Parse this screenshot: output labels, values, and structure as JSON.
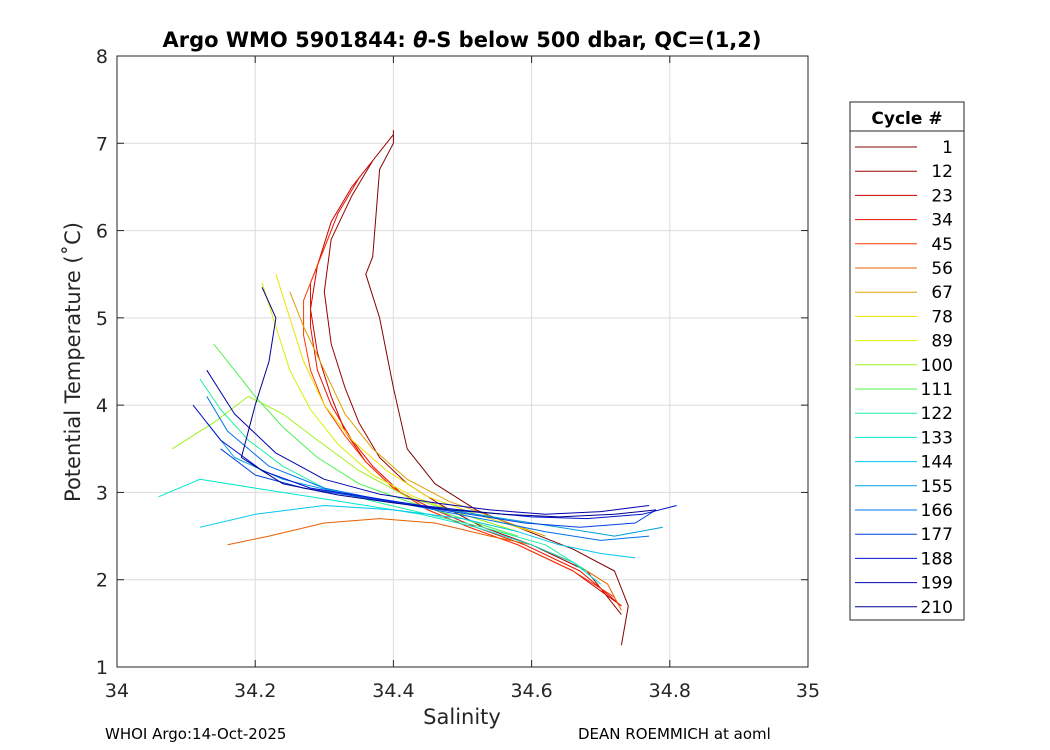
{
  "chart_data": {
    "type": "line",
    "title_parts": {
      "prefix": "Argo WMO 5901844: ",
      "symbol": "θ",
      "suffix": "-S below 500 dbar,  QC=(1,2)"
    },
    "xlabel": "Salinity",
    "ylabel": "Potential Temperature (˚C)",
    "xlim": [
      34,
      35
    ],
    "ylim": [
      1,
      8
    ],
    "xticks": [
      34,
      34.2,
      34.4,
      34.6,
      34.8,
      35
    ],
    "xtick_labels": [
      "34",
      "34.2",
      "34.4",
      "34.6",
      "34.8",
      "35"
    ],
    "yticks": [
      1,
      2,
      3,
      4,
      5,
      6,
      7,
      8
    ],
    "ytick_labels": [
      "1",
      "2",
      "3",
      "4",
      "5",
      "6",
      "7",
      "8"
    ],
    "grid": true,
    "legend": {
      "title": "Cycle #",
      "placement": "right",
      "entries": [
        {
          "label": "1",
          "color": "#800000"
        },
        {
          "label": "12",
          "color": "#9b0000"
        },
        {
          "label": "23",
          "color": "#c80000"
        },
        {
          "label": "34",
          "color": "#e61000"
        },
        {
          "label": "45",
          "color": "#ff3500"
        },
        {
          "label": "56",
          "color": "#e86000"
        },
        {
          "label": "67",
          "color": "#e0a000"
        },
        {
          "label": "78",
          "color": "#f0e000"
        },
        {
          "label": "89",
          "color": "#d8f000"
        },
        {
          "label": "100",
          "color": "#a0f020"
        },
        {
          "label": "111",
          "color": "#50f050"
        },
        {
          "label": "122",
          "color": "#20f0a0"
        },
        {
          "label": "133",
          "color": "#00e8d0"
        },
        {
          "label": "144",
          "color": "#00c8f0"
        },
        {
          "label": "155",
          "color": "#00a0e0"
        },
        {
          "label": "166",
          "color": "#0070f0"
        },
        {
          "label": "177",
          "color": "#0040e0"
        },
        {
          "label": "188",
          "color": "#0010d0"
        },
        {
          "label": "199",
          "color": "#0000b0"
        },
        {
          "label": "210",
          "color": "#00008f"
        }
      ]
    },
    "series": [
      {
        "name": "1",
        "color": "#800000",
        "x": [
          34.4,
          34.4,
          34.38,
          34.37,
          34.36,
          34.38,
          34.4,
          34.42,
          34.46,
          34.52,
          34.58,
          34.66,
          34.72,
          34.74,
          34.73
        ],
        "y": [
          7.15,
          7.0,
          6.7,
          5.7,
          5.5,
          5.0,
          4.2,
          3.5,
          3.1,
          2.8,
          2.6,
          2.35,
          2.1,
          1.7,
          1.25
        ]
      },
      {
        "name": "12",
        "color": "#9b0000",
        "x": [
          34.4,
          34.37,
          34.34,
          34.31,
          34.3,
          34.31,
          34.33,
          34.35,
          34.38,
          34.42,
          34.47,
          34.53,
          34.6,
          34.68,
          34.73
        ],
        "y": [
          7.1,
          6.8,
          6.4,
          5.9,
          5.3,
          4.7,
          4.2,
          3.8,
          3.4,
          3.1,
          2.85,
          2.6,
          2.4,
          2.1,
          1.6
        ]
      },
      {
        "name": "23",
        "color": "#c80000",
        "x": [
          34.37,
          34.34,
          34.31,
          34.29,
          34.28,
          34.29,
          34.31,
          34.33,
          34.36,
          34.4,
          34.45,
          34.51,
          34.58,
          34.66,
          34.73
        ],
        "y": [
          6.8,
          6.5,
          6.1,
          5.6,
          5.1,
          4.6,
          4.1,
          3.7,
          3.35,
          3.05,
          2.8,
          2.6,
          2.4,
          2.1,
          1.7
        ]
      },
      {
        "name": "34",
        "color": "#e61000",
        "x": [
          34.35,
          34.32,
          34.3,
          34.28,
          34.28,
          34.29,
          34.31,
          34.34,
          34.37,
          34.41,
          34.46,
          34.52,
          34.59,
          34.67,
          34.73
        ],
        "y": [
          6.6,
          6.2,
          5.8,
          5.4,
          4.9,
          4.4,
          4.0,
          3.6,
          3.3,
          3.0,
          2.8,
          2.6,
          2.4,
          2.1,
          1.7
        ]
      },
      {
        "name": "45",
        "color": "#ff3500",
        "x": [
          34.31,
          34.29,
          34.27,
          34.27,
          34.28,
          34.3,
          34.33,
          34.36,
          34.4,
          34.45,
          34.51,
          34.58,
          34.66,
          34.72
        ],
        "y": [
          6.0,
          5.6,
          5.2,
          4.8,
          4.4,
          4.0,
          3.65,
          3.35,
          3.05,
          2.8,
          2.6,
          2.4,
          2.1,
          1.8
        ]
      },
      {
        "name": "56",
        "color": "#e86000",
        "x": [
          34.16,
          34.22,
          34.3,
          34.38,
          34.46,
          34.54,
          34.6,
          34.66,
          34.71,
          34.73
        ],
        "y": [
          2.4,
          2.5,
          2.65,
          2.7,
          2.65,
          2.5,
          2.4,
          2.2,
          1.95,
          1.65
        ]
      },
      {
        "name": "67",
        "color": "#e0a000",
        "x": [
          34.25,
          34.27,
          34.3,
          34.33,
          34.37,
          34.42,
          34.48,
          34.55,
          34.62
        ],
        "y": [
          5.3,
          4.9,
          4.4,
          3.9,
          3.5,
          3.15,
          2.9,
          2.7,
          2.5
        ]
      },
      {
        "name": "78",
        "color": "#f0e000",
        "x": [
          34.23,
          34.25,
          34.27,
          34.3,
          34.34,
          34.39,
          34.45,
          34.52,
          34.6
        ],
        "y": [
          5.5,
          5.0,
          4.5,
          4.0,
          3.6,
          3.25,
          2.95,
          2.75,
          2.55
        ]
      },
      {
        "name": "89",
        "color": "#d8f000",
        "x": [
          34.21,
          34.23,
          34.25,
          34.28,
          34.32,
          34.37,
          34.43,
          34.5,
          34.58
        ],
        "y": [
          5.4,
          4.9,
          4.4,
          3.95,
          3.55,
          3.2,
          2.95,
          2.75,
          2.55
        ]
      },
      {
        "name": "100",
        "color": "#a0f020",
        "x": [
          34.08,
          34.14,
          34.19,
          34.24,
          34.29,
          34.35,
          34.42,
          34.5,
          34.58
        ],
        "y": [
          3.5,
          3.8,
          4.1,
          3.9,
          3.6,
          3.25,
          2.95,
          2.75,
          2.55
        ]
      },
      {
        "name": "111",
        "color": "#50f050",
        "x": [
          34.14,
          34.17,
          34.2,
          34.24,
          34.29,
          34.35,
          34.42,
          34.5,
          34.58
        ],
        "y": [
          4.7,
          4.4,
          4.1,
          3.75,
          3.4,
          3.1,
          2.9,
          2.7,
          2.5
        ]
      },
      {
        "name": "122",
        "color": "#20f0a0",
        "x": [
          34.12,
          34.15,
          34.19,
          34.24,
          34.3,
          34.37,
          34.45,
          34.53,
          34.62,
          34.68
        ],
        "y": [
          4.3,
          3.95,
          3.6,
          3.3,
          3.05,
          2.9,
          2.75,
          2.6,
          2.4,
          2.1
        ]
      },
      {
        "name": "133",
        "color": "#00e8d0",
        "x": [
          34.06,
          34.12,
          34.2,
          34.28,
          34.36,
          34.44,
          34.52,
          34.6,
          34.66,
          34.7
        ],
        "y": [
          2.95,
          3.15,
          3.05,
          2.95,
          2.85,
          2.75,
          2.6,
          2.4,
          2.2,
          1.95
        ]
      },
      {
        "name": "144",
        "color": "#00c8f0",
        "x": [
          34.12,
          34.2,
          34.3,
          34.4,
          34.5,
          34.58,
          34.64,
          34.7,
          34.75
        ],
        "y": [
          2.6,
          2.75,
          2.85,
          2.8,
          2.7,
          2.55,
          2.4,
          2.3,
          2.25
        ]
      },
      {
        "name": "155",
        "color": "#00a0e0",
        "x": [
          34.13,
          34.17,
          34.24,
          34.32,
          34.4,
          34.48,
          34.56,
          34.64,
          34.72,
          34.79
        ],
        "y": [
          3.8,
          3.4,
          3.15,
          3.0,
          2.9,
          2.8,
          2.7,
          2.6,
          2.5,
          2.6
        ]
      },
      {
        "name": "166",
        "color": "#0070f0",
        "x": [
          34.13,
          34.16,
          34.22,
          34.3,
          34.38,
          34.46,
          34.54,
          34.62,
          34.7,
          34.77
        ],
        "y": [
          4.1,
          3.7,
          3.3,
          3.05,
          2.92,
          2.8,
          2.68,
          2.55,
          2.45,
          2.5
        ]
      },
      {
        "name": "177",
        "color": "#0040e0",
        "x": [
          34.15,
          34.2,
          34.27,
          34.35,
          34.43,
          34.51,
          34.59,
          34.67,
          34.75,
          34.78
        ],
        "y": [
          3.5,
          3.2,
          3.05,
          2.95,
          2.85,
          2.75,
          2.65,
          2.6,
          2.65,
          2.8
        ]
      },
      {
        "name": "188",
        "color": "#0010d0",
        "x": [
          34.11,
          34.15,
          34.21,
          34.28,
          34.36,
          34.44,
          34.52,
          34.6,
          34.68,
          34.76,
          34.81
        ],
        "y": [
          4.0,
          3.6,
          3.25,
          3.05,
          2.95,
          2.85,
          2.78,
          2.72,
          2.7,
          2.75,
          2.85
        ]
      },
      {
        "name": "199",
        "color": "#0000b0",
        "x": [
          34.13,
          34.17,
          34.23,
          34.3,
          34.38,
          34.46,
          34.54,
          34.62,
          34.7,
          34.77
        ],
        "y": [
          4.4,
          3.9,
          3.45,
          3.15,
          2.98,
          2.88,
          2.8,
          2.75,
          2.78,
          2.85
        ]
      },
      {
        "name": "210",
        "color": "#00008f",
        "x": [
          34.21,
          34.23,
          34.22,
          34.2,
          34.18,
          34.24,
          34.32,
          34.4,
          34.48,
          34.56,
          34.64,
          34.72,
          34.78
        ],
        "y": [
          5.35,
          5.0,
          4.5,
          4.0,
          3.4,
          3.1,
          2.97,
          2.88,
          2.8,
          2.75,
          2.72,
          2.75,
          2.8
        ]
      }
    ]
  },
  "footer": {
    "left": "WHOI Argo:14-Oct-2025",
    "right": "DEAN ROEMMICH at aoml"
  }
}
